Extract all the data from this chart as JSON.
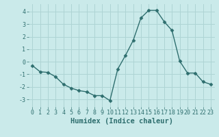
{
  "x": [
    0,
    1,
    2,
    3,
    4,
    5,
    6,
    7,
    8,
    9,
    10,
    11,
    12,
    13,
    14,
    15,
    16,
    17,
    18,
    19,
    20,
    21,
    22,
    23
  ],
  "y": [
    -0.3,
    -0.8,
    -0.85,
    -1.2,
    -1.8,
    -2.1,
    -2.3,
    -2.4,
    -2.7,
    -2.7,
    -3.1,
    -0.6,
    0.5,
    1.7,
    3.5,
    4.1,
    4.1,
    3.2,
    2.5,
    0.05,
    -0.9,
    -0.9,
    -1.6,
    -1.8
  ],
  "line_color": "#2e6e6e",
  "marker": "D",
  "marker_size": 2.5,
  "bg_color": "#caeaea",
  "grid_color": "#aed4d4",
  "xlabel": "Humidex (Indice chaleur)",
  "xlim": [
    -0.5,
    23.5
  ],
  "ylim": [
    -3.6,
    4.6
  ],
  "yticks": [
    -3,
    -2,
    -1,
    0,
    1,
    2,
    3,
    4
  ],
  "xticks": [
    0,
    1,
    2,
    3,
    4,
    5,
    6,
    7,
    8,
    9,
    10,
    11,
    12,
    13,
    14,
    15,
    16,
    17,
    18,
    19,
    20,
    21,
    22,
    23
  ],
  "tick_fontsize": 6,
  "xlabel_fontsize": 7.5
}
